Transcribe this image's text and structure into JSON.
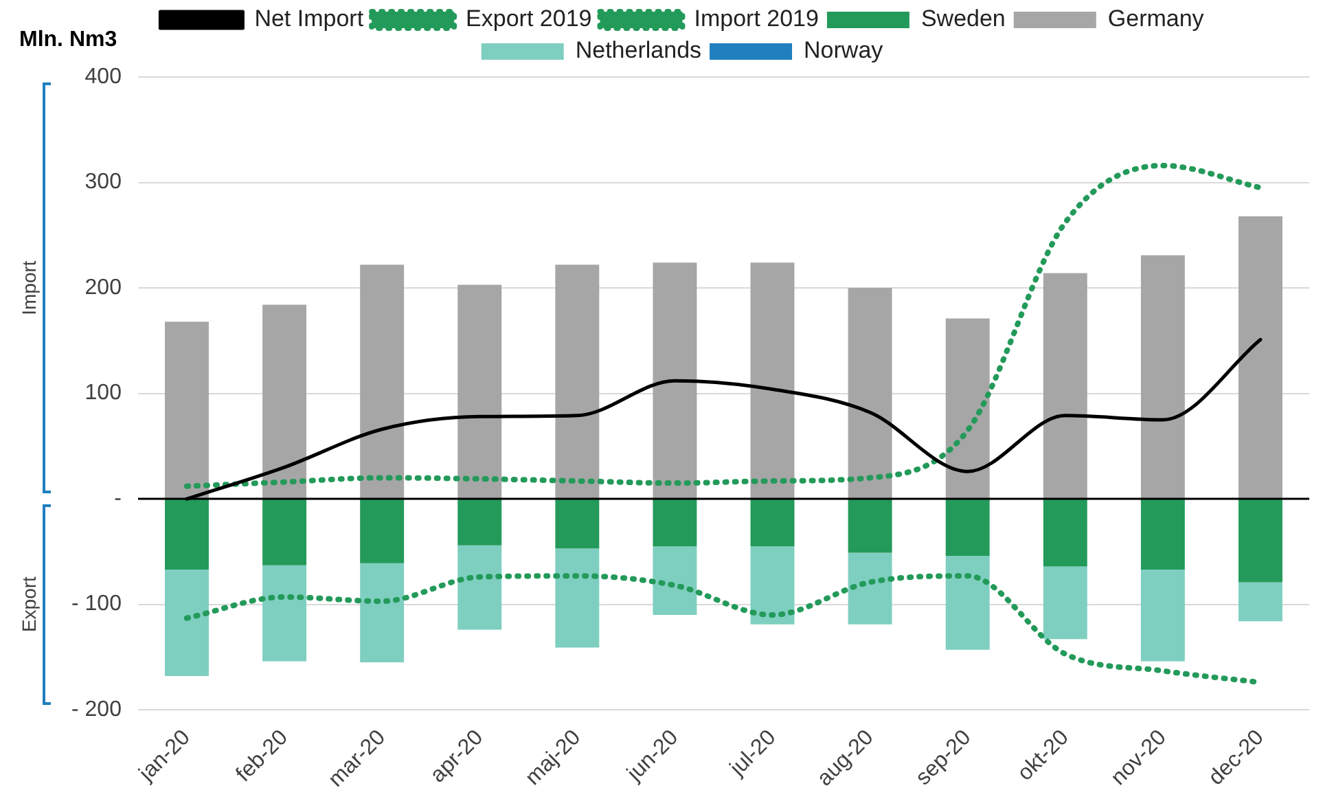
{
  "chart_data": {
    "type": "bar",
    "stacked": true,
    "ylabel": "Mln. Nm3",
    "categories": [
      "jan-20",
      "feb-20",
      "mar-20",
      "apr-20",
      "maj-20",
      "jun-20",
      "jul-20",
      "aug-20",
      "sep-20",
      "okt-20",
      "nov-20",
      "dec-20"
    ],
    "series": [
      {
        "name": "Sweden",
        "color": "#239a5a",
        "values": [
          -67,
          -63,
          -61,
          -44,
          -47,
          -45,
          -45,
          -51,
          -54,
          -64,
          -67,
          -79
        ]
      },
      {
        "name": "Germany",
        "color": "#a6a6a6",
        "values": [
          168,
          184,
          222,
          203,
          222,
          224,
          224,
          200,
          171,
          214,
          231,
          268
        ]
      },
      {
        "name": "Netherlands",
        "color": "#7ecfc0",
        "values": [
          -101,
          -91,
          -94,
          -80,
          -94,
          -65,
          -74,
          -68,
          -89,
          -69,
          -87,
          -37
        ]
      },
      {
        "name": "Norway",
        "color": "#1f7fbf",
        "values": [
          0,
          0,
          0,
          0,
          0,
          0,
          0,
          0,
          0,
          0,
          0,
          0
        ]
      },
      {
        "name": "Net Import",
        "type": "line",
        "color": "#000000",
        "line_style": "solid",
        "values": [
          0,
          30,
          66,
          78,
          79,
          112,
          104,
          82,
          26,
          79,
          75,
          151
        ]
      },
      {
        "name": "Export 2019",
        "type": "line",
        "color": "#239a5a",
        "line_style": "dotted",
        "values": [
          -113,
          -93,
          -97,
          -74,
          -73,
          -82,
          -110,
          -79,
          -73,
          -147,
          -163,
          -174
        ]
      },
      {
        "name": "Import 2019",
        "type": "line",
        "color": "#239a5a",
        "line_style": "dotted",
        "values": [
          12,
          16,
          20,
          19,
          17,
          15,
          17,
          20,
          65,
          262,
          316,
          295
        ]
      }
    ],
    "ylim": [
      -200,
      400
    ],
    "yticks": [
      {
        "value": -200,
        "label": "- 200"
      },
      {
        "value": -100,
        "label": "- 100"
      },
      {
        "value": 0,
        "label": "-"
      },
      400,
      300,
      200,
      100
    ],
    "ref_lines": [
      {
        "axis": "y",
        "value": 0,
        "color": "#000000"
      }
    ],
    "annotations": [
      "Import",
      "Export"
    ],
    "grid": "y",
    "legend": "top",
    "marker": "none"
  }
}
